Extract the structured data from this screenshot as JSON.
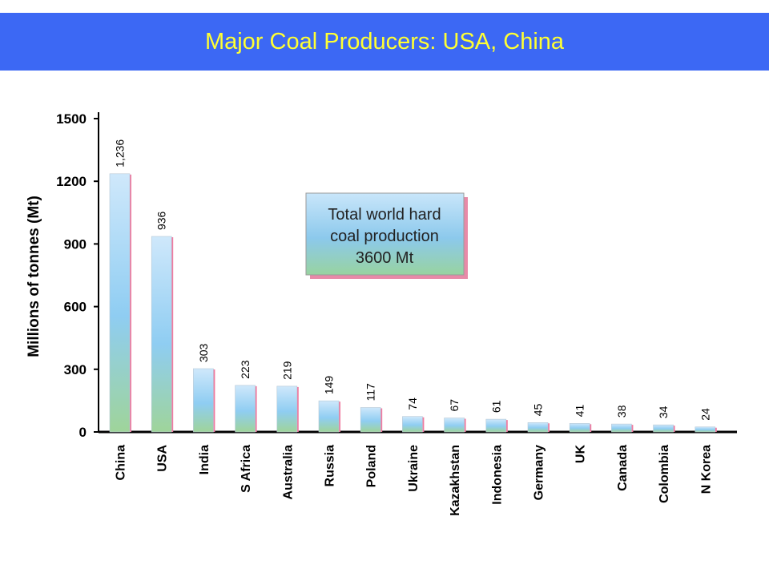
{
  "page": {
    "title": "Major Coal Producers: USA, China"
  },
  "colors": {
    "title_bg": "#3c68f4",
    "title_text": "#ffff33",
    "bar_top": "#cfe8fb",
    "bar_mid": "#8fcdf2",
    "bar_bottom": "#9fd49a",
    "bar_edge": "#f07aa0"
  },
  "chart_data": {
    "type": "bar",
    "ylabel": "Millions of tonnes (Mt)",
    "ylim": [
      0,
      1500
    ],
    "yticks": [
      0,
      300,
      600,
      900,
      1200,
      1500
    ],
    "categories": [
      "China",
      "USA",
      "India",
      "S Africa",
      "Australia",
      "Russia",
      "Poland",
      "Ukraine",
      "Kazakhstan",
      "Indonesia",
      "Germany",
      "UK",
      "Canada",
      "Colombia",
      "N Korea"
    ],
    "values": [
      1236,
      936,
      303,
      223,
      219,
      149,
      117,
      74,
      67,
      61,
      45,
      41,
      38,
      34,
      24
    ],
    "value_labels": [
      "1,236",
      "936",
      "303",
      "223",
      "219",
      "149",
      "117",
      "74",
      "67",
      "61",
      "45",
      "41",
      "38",
      "34",
      "24"
    ],
    "annotation": {
      "lines": [
        "Total world hard",
        "coal production",
        "3600 Mt"
      ]
    }
  }
}
